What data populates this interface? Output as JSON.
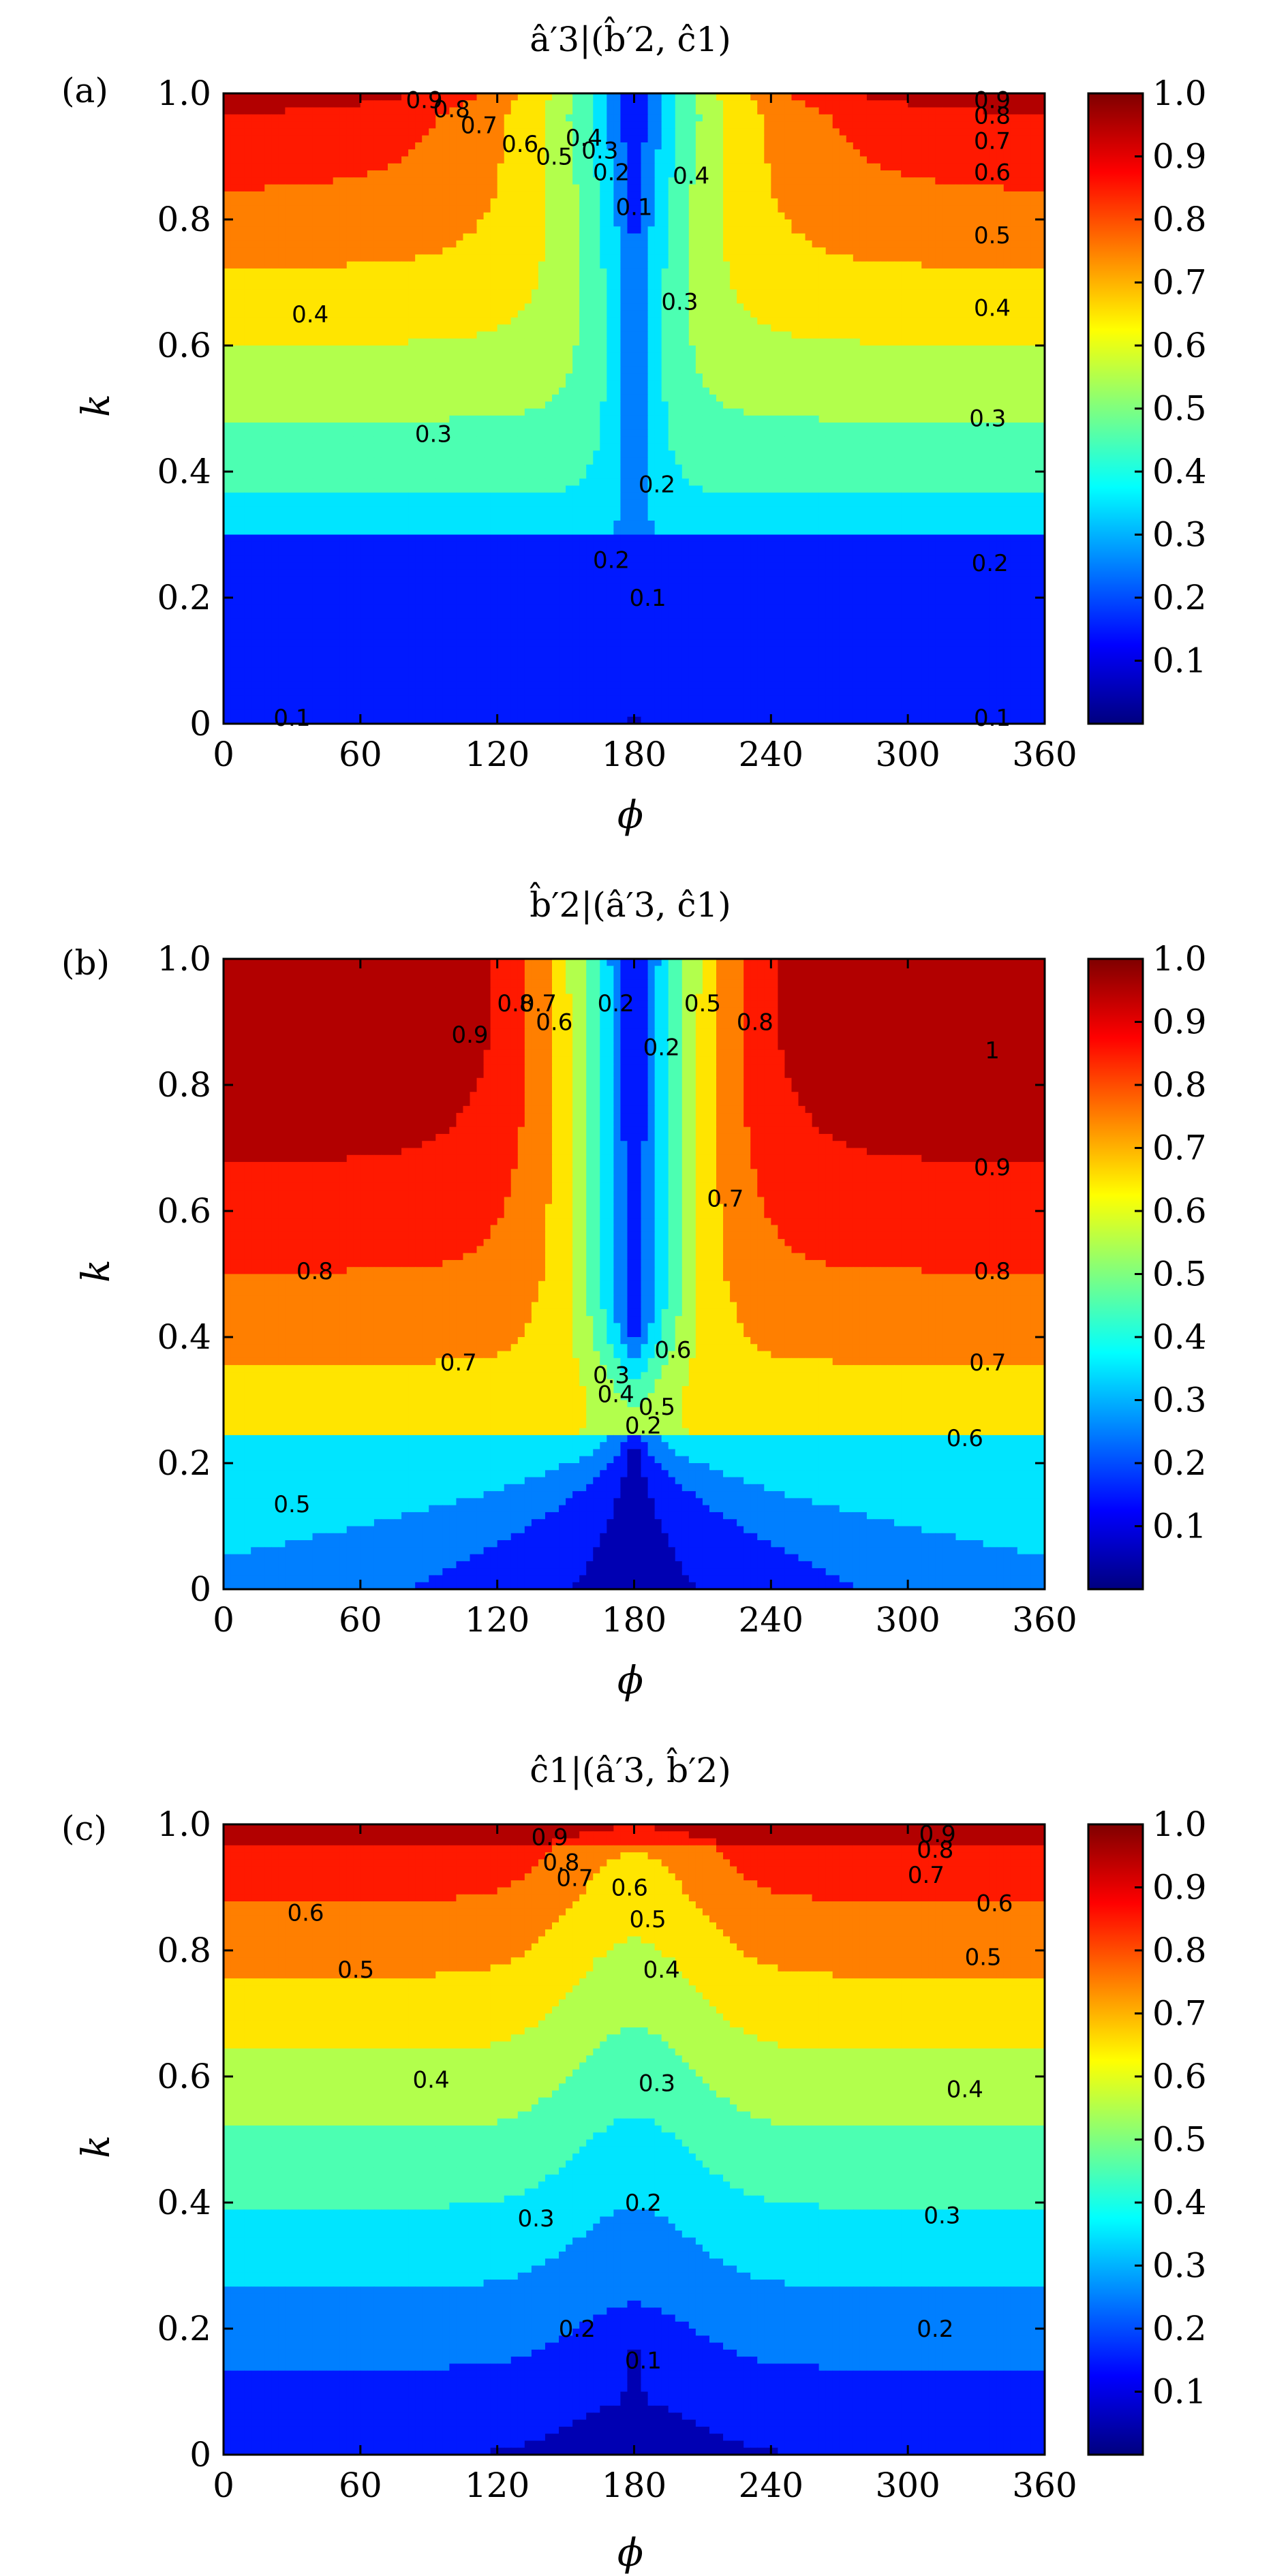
{
  "figure": {
    "colormap": "jet",
    "colormap_stops": [
      "#00007f",
      "#0000ff",
      "#007fff",
      "#00ffff",
      "#7fff7f",
      "#ffff00",
      "#ff7f00",
      "#ff0000",
      "#7f0000"
    ],
    "contour_line_color": "#000000"
  },
  "chart_data": [
    {
      "type": "contour",
      "panel_label": "(a)",
      "title": "â′3|(b̂′2, ĉ1)",
      "xlabel": "ϕ",
      "ylabel": "k",
      "xlim": [
        0,
        360
      ],
      "ylim": [
        0,
        1.0
      ],
      "x_ticks": [
        0,
        60,
        120,
        180,
        240,
        300,
        360
      ],
      "y_ticks": [
        "0",
        "0.2",
        "0.4",
        "0.6",
        "0.8",
        "1.0"
      ],
      "y_tick_values": [
        0,
        0.2,
        0.4,
        0.6,
        0.8,
        1.0
      ],
      "colorbar": {
        "range": [
          0,
          1.0
        ],
        "ticks": [
          "0.1",
          "0.2",
          "0.3",
          "0.4",
          "0.5",
          "0.6",
          "0.7",
          "0.8",
          "0.9",
          "1.0"
        ],
        "tick_values": [
          0.1,
          0.2,
          0.3,
          0.4,
          0.5,
          0.6,
          0.7,
          0.8,
          0.9,
          1.0
        ]
      },
      "contour_labels": [
        {
          "text": "0.1",
          "x": 30,
          "y": 0.01
        },
        {
          "text": "0.1",
          "x": 337,
          "y": 0.01
        },
        {
          "text": "0.2",
          "x": 336,
          "y": 0.255
        },
        {
          "text": "0.2",
          "x": 170,
          "y": 0.26
        },
        {
          "text": "0.1",
          "x": 186,
          "y": 0.2
        },
        {
          "text": "0.2",
          "x": 190,
          "y": 0.38
        },
        {
          "text": "0.3",
          "x": 92,
          "y": 0.46
        },
        {
          "text": "0.3",
          "x": 335,
          "y": 0.485
        },
        {
          "text": "0.3",
          "x": 200,
          "y": 0.67
        },
        {
          "text": "0.4",
          "x": 38,
          "y": 0.65
        },
        {
          "text": "0.4",
          "x": 337,
          "y": 0.66
        },
        {
          "text": "0.4",
          "x": 205,
          "y": 0.87
        },
        {
          "text": "0.5",
          "x": 337,
          "y": 0.775
        },
        {
          "text": "0.6",
          "x": 337,
          "y": 0.875
        },
        {
          "text": "0.7",
          "x": 337,
          "y": 0.925
        },
        {
          "text": "0.8",
          "x": 337,
          "y": 0.965
        },
        {
          "text": "0.9",
          "x": 337,
          "y": 0.99
        },
        {
          "text": "0.6",
          "x": 130,
          "y": 0.92
        },
        {
          "text": "0.7",
          "x": 112,
          "y": 0.95
        },
        {
          "text": "0.8",
          "x": 100,
          "y": 0.975
        },
        {
          "text": "0.9",
          "x": 88,
          "y": 0.99
        },
        {
          "text": "0.5",
          "x": 145,
          "y": 0.9
        },
        {
          "text": "0.4",
          "x": 158,
          "y": 0.93
        },
        {
          "text": "0.3",
          "x": 165,
          "y": 0.91
        },
        {
          "text": "0.2",
          "x": 170,
          "y": 0.875
        },
        {
          "text": "0.1",
          "x": 180,
          "y": 0.82
        }
      ]
    },
    {
      "type": "contour",
      "panel_label": "(b)",
      "title": "b̂′2|(â′3, ĉ1)",
      "xlabel": "ϕ",
      "ylabel": "k",
      "xlim": [
        0,
        360
      ],
      "ylim": [
        0,
        1.0
      ],
      "x_ticks": [
        0,
        60,
        120,
        180,
        240,
        300,
        360
      ],
      "y_ticks": [
        "0",
        "0.2",
        "0.4",
        "0.6",
        "0.8",
        "1.0"
      ],
      "y_tick_values": [
        0,
        0.2,
        0.4,
        0.6,
        0.8,
        1.0
      ],
      "colorbar": {
        "range": [
          0,
          1.0
        ],
        "ticks": [
          "0.1",
          "0.2",
          "0.3",
          "0.4",
          "0.5",
          "0.6",
          "0.7",
          "0.8",
          "0.9",
          "1.0"
        ],
        "tick_values": [
          0.1,
          0.2,
          0.3,
          0.4,
          0.5,
          0.6,
          0.7,
          0.8,
          0.9,
          1.0
        ]
      },
      "contour_labels": [
        {
          "text": "0.5",
          "x": 30,
          "y": 0.135
        },
        {
          "text": "0.6",
          "x": 325,
          "y": 0.24
        },
        {
          "text": "0.7",
          "x": 103,
          "y": 0.36
        },
        {
          "text": "0.7",
          "x": 335,
          "y": 0.36
        },
        {
          "text": "0.8",
          "x": 40,
          "y": 0.505
        },
        {
          "text": "0.8",
          "x": 337,
          "y": 0.505
        },
        {
          "text": "0.9",
          "x": 337,
          "y": 0.67
        },
        {
          "text": "1",
          "x": 337,
          "y": 0.855
        },
        {
          "text": "0.7",
          "x": 220,
          "y": 0.62
        },
        {
          "text": "0.6",
          "x": 197,
          "y": 0.38
        },
        {
          "text": "0.8",
          "x": 233,
          "y": 0.9
        },
        {
          "text": "0.5",
          "x": 210,
          "y": 0.93
        },
        {
          "text": "0.2",
          "x": 192,
          "y": 0.86
        },
        {
          "text": "0.2",
          "x": 172,
          "y": 0.93
        },
        {
          "text": "0.6",
          "x": 145,
          "y": 0.9
        },
        {
          "text": "0.7",
          "x": 138,
          "y": 0.93
        },
        {
          "text": "0.8",
          "x": 128,
          "y": 0.93
        },
        {
          "text": "0.9",
          "x": 108,
          "y": 0.88
        },
        {
          "text": "0.3",
          "x": 170,
          "y": 0.34
        },
        {
          "text": "0.4",
          "x": 172,
          "y": 0.31
        },
        {
          "text": "0.5",
          "x": 190,
          "y": 0.29
        },
        {
          "text": "0.2",
          "x": 184,
          "y": 0.26
        }
      ]
    },
    {
      "type": "contour",
      "panel_label": "(c)",
      "title": "ĉ1|(â′3, b̂′2)",
      "xlabel": "ϕ",
      "ylabel": "k",
      "xlim": [
        0,
        360
      ],
      "ylim": [
        0,
        1.0
      ],
      "x_ticks": [
        0,
        60,
        120,
        180,
        240,
        300,
        360
      ],
      "y_ticks": [
        "0",
        "0.2",
        "0.4",
        "0.6",
        "0.8",
        "1.0"
      ],
      "y_tick_values": [
        0,
        0.2,
        0.4,
        0.6,
        0.8,
        1.0
      ],
      "colorbar": {
        "range": [
          0,
          1.0
        ],
        "ticks": [
          "0.1",
          "0.2",
          "0.3",
          "0.4",
          "0.5",
          "0.6",
          "0.7",
          "0.8",
          "0.9",
          "1.0"
        ],
        "tick_values": [
          0.1,
          0.2,
          0.3,
          0.4,
          0.5,
          0.6,
          0.7,
          0.8,
          0.9,
          1.0
        ]
      },
      "contour_labels": [
        {
          "text": "0.2",
          "x": 155,
          "y": 0.2
        },
        {
          "text": "0.2",
          "x": 312,
          "y": 0.2
        },
        {
          "text": "0.1",
          "x": 184,
          "y": 0.15
        },
        {
          "text": "0.2",
          "x": 184,
          "y": 0.4
        },
        {
          "text": "0.3",
          "x": 137,
          "y": 0.375
        },
        {
          "text": "0.3",
          "x": 315,
          "y": 0.38
        },
        {
          "text": "0.3",
          "x": 190,
          "y": 0.59
        },
        {
          "text": "0.4",
          "x": 91,
          "y": 0.595
        },
        {
          "text": "0.4",
          "x": 325,
          "y": 0.58
        },
        {
          "text": "0.4",
          "x": 192,
          "y": 0.77
        },
        {
          "text": "0.5",
          "x": 58,
          "y": 0.77
        },
        {
          "text": "0.5",
          "x": 333,
          "y": 0.79
        },
        {
          "text": "0.6",
          "x": 36,
          "y": 0.86
        },
        {
          "text": "0.6",
          "x": 338,
          "y": 0.875
        },
        {
          "text": "0.7",
          "x": 154,
          "y": 0.915
        },
        {
          "text": "0.7",
          "x": 308,
          "y": 0.92
        },
        {
          "text": "0.8",
          "x": 148,
          "y": 0.94
        },
        {
          "text": "0.8",
          "x": 312,
          "y": 0.96
        },
        {
          "text": "0.9",
          "x": 143,
          "y": 0.98
        },
        {
          "text": "0.9",
          "x": 313,
          "y": 0.985
        },
        {
          "text": "0.6",
          "x": 178,
          "y": 0.9
        },
        {
          "text": "0.5",
          "x": 186,
          "y": 0.85
        }
      ]
    }
  ]
}
